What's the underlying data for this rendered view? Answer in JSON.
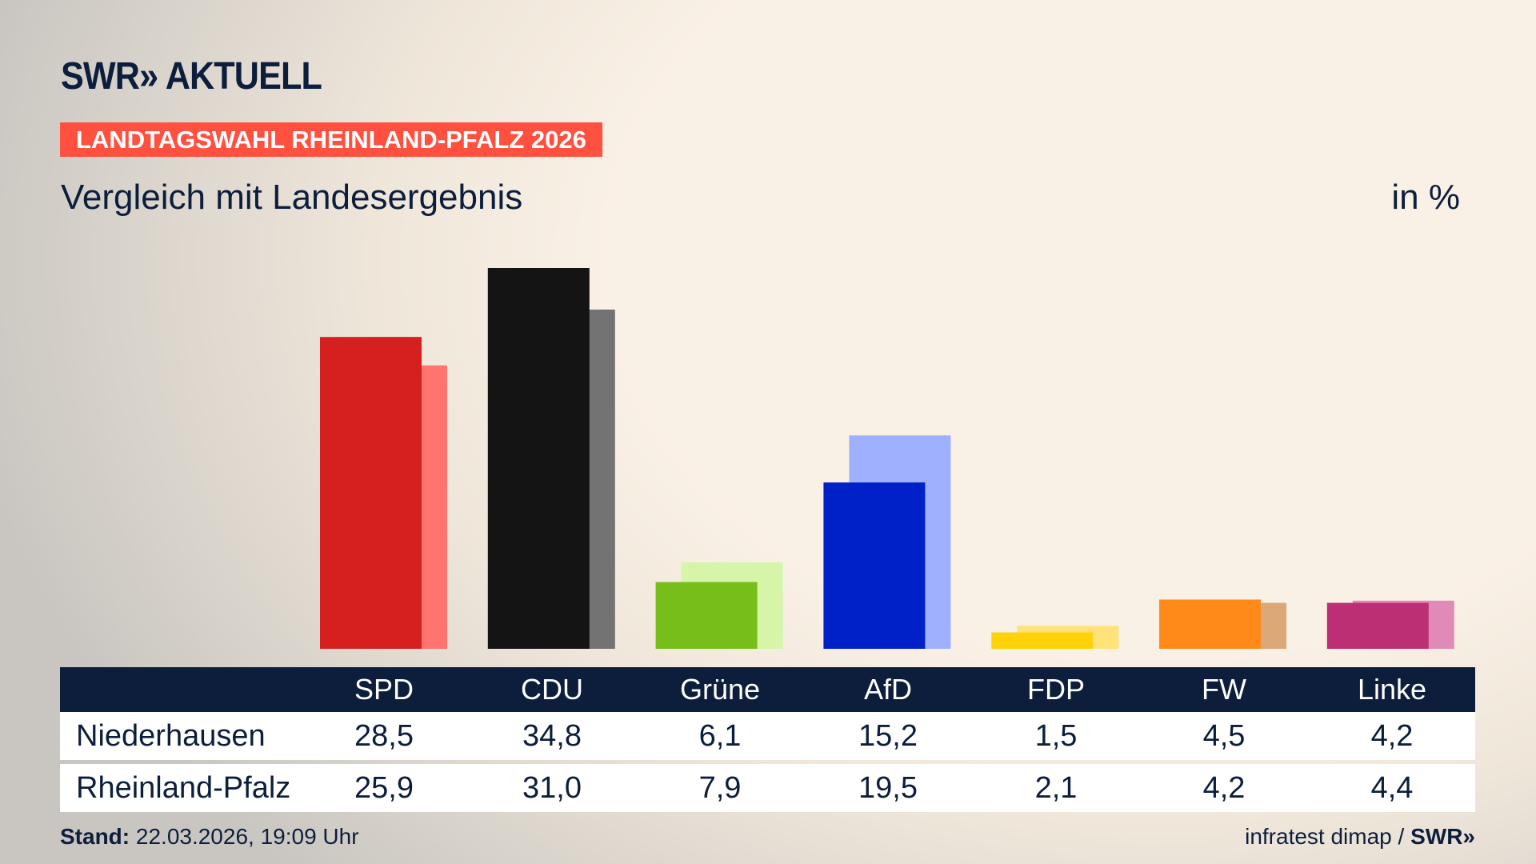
{
  "brand": {
    "logo": "SWR» AKTUELL",
    "footer_logo": "SWR»"
  },
  "banner": "LANDTAGSWAHL RHEINLAND-PFALZ 2026",
  "subtitle": "Vergleich mit Landesergebnis",
  "unit": "in %",
  "chart_data": {
    "type": "bar",
    "categories": [
      "SPD",
      "CDU",
      "Grüne",
      "AfD",
      "FDP",
      "FW",
      "Linke"
    ],
    "series": [
      {
        "name": "Niederhausen",
        "values": [
          28.5,
          34.8,
          6.1,
          15.2,
          1.5,
          4.5,
          4.2
        ],
        "colors": [
          "#d62020",
          "#141414",
          "#78be1a",
          "#0020c8",
          "#ffd20a",
          "#ff8a1a",
          "#bc2f74"
        ]
      },
      {
        "name": "Rheinland-Pfalz",
        "values": [
          25.9,
          31.0,
          7.9,
          19.5,
          2.1,
          4.2,
          4.4
        ],
        "colors": [
          "#ff746e",
          "#737373",
          "#d6f5a8",
          "#9fb0ff",
          "#ffe27a",
          "#dca878",
          "#e08ab8"
        ]
      }
    ],
    "ylim": [
      0,
      34.8
    ],
    "grid": false
  },
  "table": {
    "headers": [
      "SPD",
      "CDU",
      "Grüne",
      "AfD",
      "FDP",
      "FW",
      "Linke"
    ],
    "rows": [
      {
        "label": "Niederhausen",
        "values": [
          "28,5",
          "34,8",
          "6,1",
          "15,2",
          "1,5",
          "4,5",
          "4,2"
        ]
      },
      {
        "label": "Rheinland-Pfalz",
        "values": [
          "25,9",
          "31,0",
          "7,9",
          "19,5",
          "2,1",
          "4,2",
          "4,4"
        ]
      }
    ]
  },
  "footer": {
    "stand_label": "Stand:",
    "stand_value": " 22.03.2026, 19:09 Uhr",
    "source": "infratest dimap / "
  }
}
